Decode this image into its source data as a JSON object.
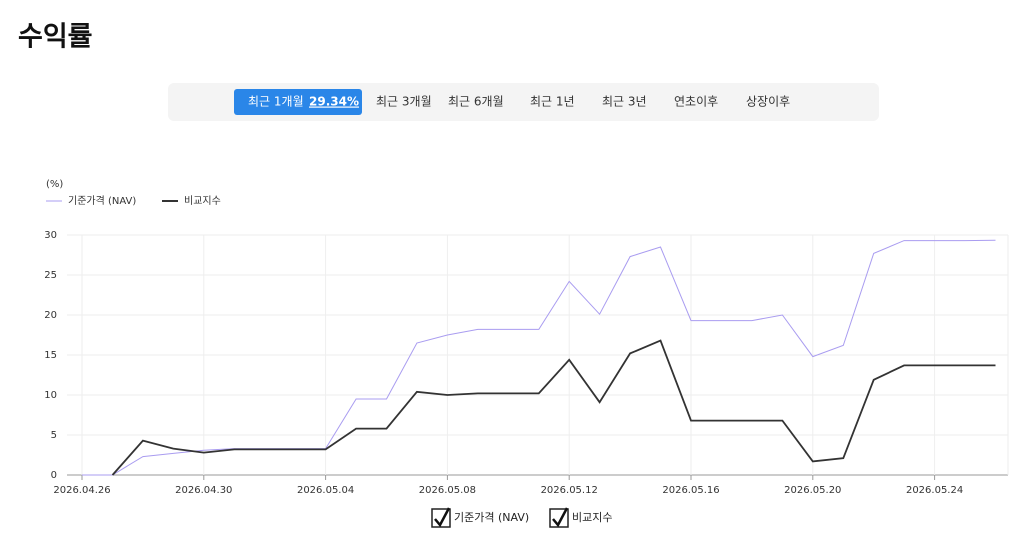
{
  "header": {
    "title": "수익률"
  },
  "tabs": [
    {
      "label": "최근 1개월",
      "return": "29.34%",
      "active": true
    },
    {
      "label": "최근 3개월"
    },
    {
      "label": "최근 6개월"
    },
    {
      "label": "최근 1년"
    },
    {
      "label": "최근 3년"
    },
    {
      "label": "연초이후"
    },
    {
      "label": "상장이후"
    }
  ],
  "chart_data": {
    "type": "line",
    "y_label": "(%)",
    "x": [
      "2026.04.26",
      "2026.04.27",
      "2026.04.28",
      "2026.04.29",
      "2026.04.30",
      "2026.05.01",
      "2026.05.02",
      "2026.05.03",
      "2026.05.04",
      "2026.05.05",
      "2026.05.06",
      "2026.05.07",
      "2026.05.08",
      "2026.05.09",
      "2026.05.10",
      "2026.05.11",
      "2026.05.12",
      "2026.05.13",
      "2026.05.14",
      "2026.05.15",
      "2026.05.16",
      "2026.05.17",
      "2026.05.18",
      "2026.05.19",
      "2026.05.20",
      "2026.05.21",
      "2026.05.22",
      "2026.05.23",
      "2026.05.24",
      "2026.05.25",
      "2026.05.26"
    ],
    "xticks": [
      "2026.04.26",
      "2026.04.30",
      "2026.05.04",
      "2026.05.08",
      "2026.05.12",
      "2026.05.16",
      "2026.05.20",
      "2026.05.24"
    ],
    "ylim": [
      0,
      30
    ],
    "yticks": [
      0,
      5,
      10,
      15,
      20,
      25,
      30
    ],
    "grid": true,
    "series": [
      {
        "name": "기준가격 (NAV)",
        "color": "#a99cf0",
        "values": [
          0,
          0,
          2.3,
          2.7,
          3.1,
          3.3,
          3.3,
          3.3,
          3.3,
          9.5,
          9.5,
          16.5,
          17.5,
          18.2,
          18.2,
          18.2,
          24.2,
          20.1,
          27.3,
          28.5,
          19.3,
          19.3,
          19.3,
          20.0,
          14.8,
          16.2,
          27.7,
          29.3,
          29.3,
          29.3,
          29.34
        ]
      },
      {
        "name": "비교지수",
        "color": "#333333",
        "values": [
          null,
          0,
          4.3,
          3.3,
          2.8,
          3.2,
          3.2,
          3.2,
          3.2,
          5.8,
          5.8,
          10.4,
          10.0,
          10.2,
          10.2,
          10.2,
          14.4,
          9.1,
          15.2,
          16.8,
          6.8,
          6.8,
          6.8,
          6.8,
          1.7,
          2.1,
          11.9,
          13.7,
          13.7,
          13.7,
          13.7
        ]
      }
    ]
  }
}
